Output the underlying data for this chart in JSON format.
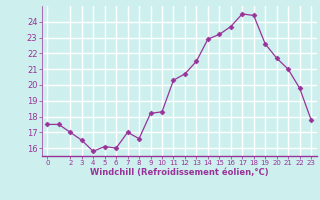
{
  "x": [
    0,
    1,
    2,
    3,
    4,
    5,
    6,
    7,
    8,
    9,
    10,
    11,
    12,
    13,
    14,
    15,
    16,
    17,
    18,
    19,
    20,
    21,
    22,
    23
  ],
  "y": [
    17.5,
    17.5,
    17.0,
    16.5,
    15.8,
    16.1,
    16.0,
    17.0,
    16.6,
    18.2,
    18.3,
    20.3,
    20.7,
    21.5,
    22.9,
    23.2,
    23.7,
    24.5,
    24.4,
    22.6,
    21.7,
    21.0,
    19.8,
    17.8
  ],
  "line_color": "#993399",
  "marker": "D",
  "marker_size": 2.5,
  "bg_color": "#cdf0ee",
  "grid_color": "#ffffff",
  "xlabel": "Windchill (Refroidissement éolien,°C)",
  "xlabel_color": "#993399",
  "tick_color": "#993399",
  "ylim": [
    15.5,
    25.0
  ],
  "xlim": [
    -0.5,
    23.5
  ],
  "yticks": [
    16,
    17,
    18,
    19,
    20,
    21,
    22,
    23,
    24
  ],
  "xticks": [
    0,
    2,
    3,
    4,
    5,
    6,
    7,
    8,
    9,
    10,
    11,
    12,
    13,
    14,
    15,
    16,
    17,
    18,
    19,
    20,
    21,
    22,
    23
  ],
  "spine_color": "#888888"
}
